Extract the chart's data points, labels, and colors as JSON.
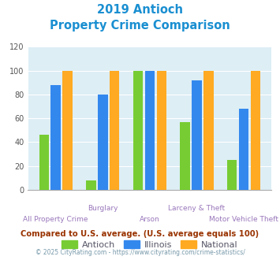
{
  "title_line1": "2019 Antioch",
  "title_line2": "Property Crime Comparison",
  "title_color": "#1a8fd1",
  "categories": [
    "All Property Crime",
    "Burglary",
    "Arson",
    "Larceny & Theft",
    "Motor Vehicle Theft"
  ],
  "top_labels": [
    "",
    "Burglary",
    "",
    "Larceny & Theft",
    ""
  ],
  "bottom_labels": [
    "All Property Crime",
    "",
    "Arson",
    "",
    "Motor Vehicle Theft"
  ],
  "antioch": [
    46,
    8,
    100,
    57,
    25
  ],
  "illinois": [
    88,
    80,
    100,
    92,
    68
  ],
  "national": [
    100,
    100,
    100,
    100,
    100
  ],
  "antioch_color": "#77cc33",
  "illinois_color": "#3388ee",
  "national_color": "#ffaa22",
  "ylim": [
    0,
    120
  ],
  "yticks": [
    0,
    20,
    40,
    60,
    80,
    100,
    120
  ],
  "background_color": "#ddeef5",
  "legend_labels": [
    "Antioch",
    "Illinois",
    "National"
  ],
  "legend_text_color": "#555566",
  "footnote1": "Compared to U.S. average. (U.S. average equals 100)",
  "footnote2": "© 2025 CityRating.com - https://www.cityrating.com/crime-statistics/",
  "footnote1_color": "#993300",
  "footnote2_color": "#7799aa",
  "xlabel_color": "#9977bb"
}
